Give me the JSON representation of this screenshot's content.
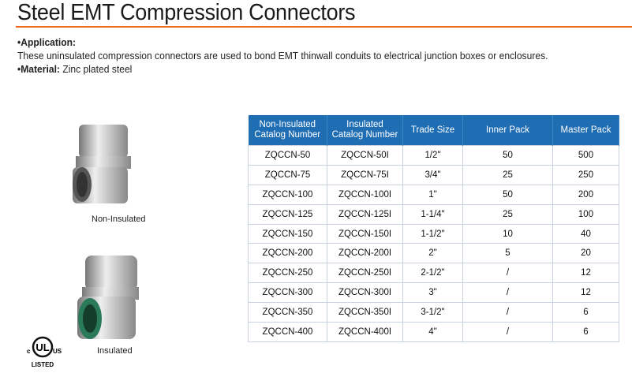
{
  "title": "Steel EMT Compression Connectors",
  "application_label": "•Application:",
  "application_text": "These uninsulated compression connectors are used to bond EMT thinwall conduits to electrical junction boxes or enclosures.",
  "material_label": "•Material:",
  "material_text": " Zinc plated steel",
  "captions": {
    "non_insulated": "Non-Insulated",
    "insulated": "Insulated"
  },
  "logo": {
    "text": "c UL us LISTED"
  },
  "colors": {
    "accent_rule": "#ef6a1f",
    "table_header": "#1f6db3"
  },
  "table": {
    "headers": [
      [
        "Non-Insulated",
        "Catalog Number"
      ],
      [
        "Insulated",
        "Catalog Number"
      ],
      [
        "Trade Size"
      ],
      [
        "Inner Pack"
      ],
      [
        "Master Pack"
      ]
    ],
    "rows": [
      [
        "ZQCCN-50",
        "ZQCCN-50I",
        "1/2\"",
        "50",
        "500"
      ],
      [
        "ZQCCN-75",
        "ZQCCN-75I",
        "3/4\"",
        "25",
        "250"
      ],
      [
        "ZQCCN-100",
        "ZQCCN-100I",
        "1\"",
        "50",
        "200"
      ],
      [
        "ZQCCN-125",
        "ZQCCN-125I",
        "1-1/4\"",
        "25",
        "100"
      ],
      [
        "ZQCCN-150",
        "ZQCCN-150I",
        "1-1/2\"",
        "10",
        "40"
      ],
      [
        "ZQCCN-200",
        "ZQCCN-200I",
        "2\"",
        "5",
        "20"
      ],
      [
        "ZQCCN-250",
        "ZQCCN-250I",
        "2-1/2\"",
        "/",
        "12"
      ],
      [
        "ZQCCN-300",
        "ZQCCN-300I",
        "3\"",
        "/",
        "12"
      ],
      [
        "ZQCCN-350",
        "ZQCCN-350I",
        "3-1/2\"",
        "/",
        "6"
      ],
      [
        "ZQCCN-400",
        "ZQCCN-400I",
        "4\"",
        "/",
        "6"
      ]
    ]
  }
}
